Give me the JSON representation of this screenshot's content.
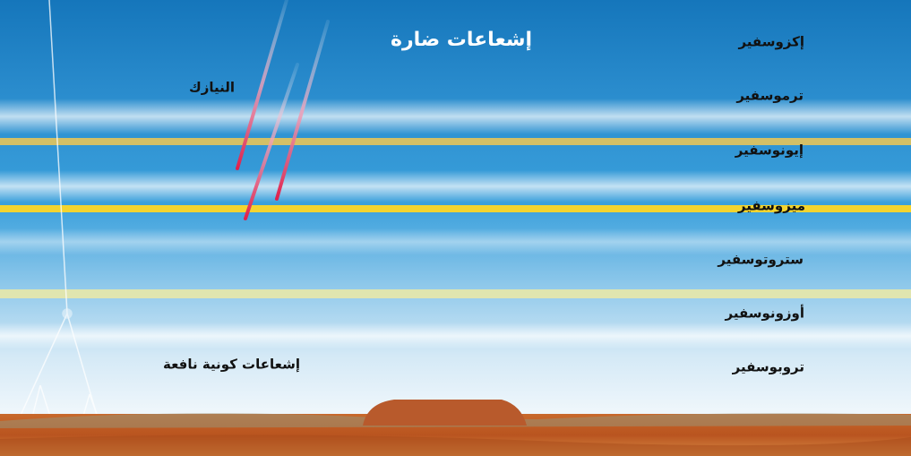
{
  "title": "إشعاعات ضارة",
  "meteors_label": "النيازك",
  "cosmic_rays_label": "إشعاعات كونية نافعة",
  "layers": [
    "إكزوسفير",
    "ترموسفير",
    "إيونوسفير",
    "ميزوسفير",
    "ستروتوسفير",
    "أوزونوسفير",
    "تروبوسفير"
  ]
}
